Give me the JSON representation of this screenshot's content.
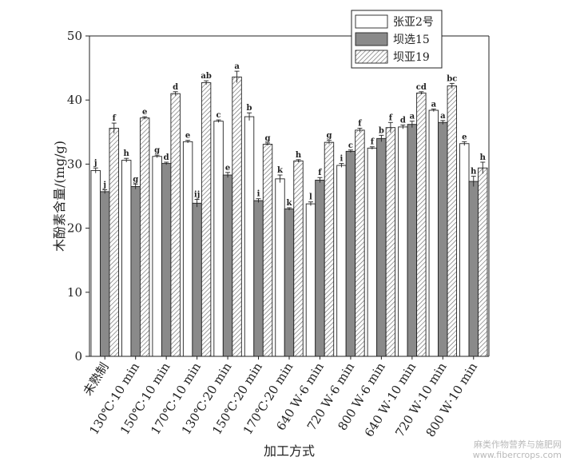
{
  "chart_data": {
    "type": "bar",
    "xlabel": "加工方式",
    "ylabel": "木酚素含量/(mg/g)",
    "ylim": [
      0,
      50
    ],
    "yticks": [
      0,
      10,
      20,
      30,
      40,
      50
    ],
    "grid": false,
    "legend_position": "top-right",
    "categories": [
      "未熟制",
      "130℃·10 min",
      "150℃·10 min",
      "170℃·10 min",
      "130℃·20 min",
      "150℃·20 min",
      "170℃·20 min",
      "640 W·6 min",
      "720 W·6 min",
      "800 W·6 min",
      "640 W·10 min",
      "720 W·10 min",
      "800 W·10 min"
    ],
    "series": [
      {
        "name": "张亚2号",
        "pattern": "white",
        "values": [
          29.0,
          30.6,
          31.2,
          33.5,
          36.7,
          37.4,
          27.7,
          23.8,
          29.8,
          32.5,
          35.8,
          38.4,
          33.2
        ],
        "errors": [
          0.4,
          0.3,
          0.2,
          0.2,
          0.2,
          0.6,
          0.6,
          0.3,
          0.3,
          0.2,
          0.3,
          0.2,
          0.3
        ],
        "letters": [
          "j",
          "h",
          "g",
          "e",
          "c",
          "b",
          "k",
          "l",
          "i",
          "f",
          "d",
          "a",
          "e"
        ]
      },
      {
        "name": "坝选15",
        "pattern": "gray",
        "values": [
          25.7,
          26.5,
          30.1,
          23.9,
          28.3,
          24.3,
          23.0,
          27.5,
          32.0,
          34.0,
          36.2,
          36.5,
          27.3
        ],
        "errors": [
          0.3,
          0.4,
          0.2,
          0.6,
          0.4,
          0.3,
          0.2,
          0.4,
          0.2,
          0.5,
          0.5,
          0.3,
          0.8
        ],
        "letters": [
          "j",
          "g",
          "d",
          "ij",
          "e",
          "i",
          "k",
          "f",
          "c",
          "b",
          "a",
          "a",
          "h"
        ]
      },
      {
        "name": "坝亚19",
        "pattern": "hatch",
        "values": [
          35.6,
          37.2,
          41.0,
          42.7,
          43.6,
          33.1,
          30.5,
          33.4,
          35.3,
          35.7,
          41.1,
          42.2,
          29.4
        ],
        "errors": [
          0.8,
          0.2,
          0.3,
          0.3,
          0.9,
          0.2,
          0.2,
          0.3,
          0.3,
          0.8,
          0.2,
          0.4,
          0.9
        ],
        "letters": [
          "f",
          "e",
          "d",
          "ab",
          "a",
          "g",
          "h",
          "g",
          "f",
          "f",
          "cd",
          "bc",
          "h"
        ]
      }
    ]
  },
  "watermark": {
    "line1": "麻类作物营养与施肥网",
    "line2": "www.fibercrops.com"
  }
}
